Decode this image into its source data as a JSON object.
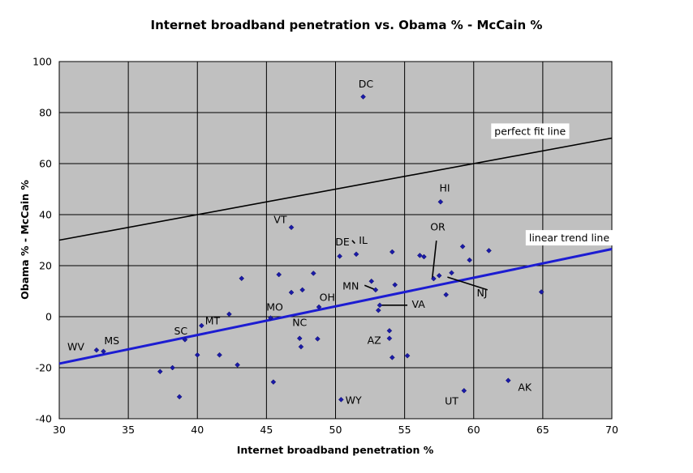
{
  "chart_data": {
    "type": "scatter",
    "title": "Internet broadband penetration vs. Obama % - McCain %",
    "xlabel": "Internet broadband penetration %",
    "ylabel": "Obama % - McCain %",
    "xlim": [
      30,
      70
    ],
    "ylim": [
      -40,
      100
    ],
    "xticks": [
      30,
      35,
      40,
      45,
      50,
      55,
      60,
      65,
      70
    ],
    "yticks": [
      -40,
      -20,
      0,
      20,
      40,
      60,
      80,
      100
    ],
    "grid": true,
    "colors": {
      "plot_bg": "#c0c0c0",
      "point": "#1a1aa8",
      "trend": "#1c1cd2",
      "fit": "#000000"
    },
    "points": [
      {
        "x": 32.7,
        "y": -13.1
      },
      {
        "x": 33.2,
        "y": -13.6
      },
      {
        "x": 37.3,
        "y": -21.5
      },
      {
        "x": 38.2,
        "y": -20.0
      },
      {
        "x": 38.7,
        "y": -31.4
      },
      {
        "x": 39.1,
        "y": -9.0
      },
      {
        "x": 40.0,
        "y": -15.0
      },
      {
        "x": 40.3,
        "y": -3.5
      },
      {
        "x": 41.6,
        "y": -15.0
      },
      {
        "x": 42.3,
        "y": 1.0
      },
      {
        "x": 42.9,
        "y": -18.9
      },
      {
        "x": 43.2,
        "y": 15.0
      },
      {
        "x": 45.3,
        "y": -0.5
      },
      {
        "x": 45.5,
        "y": -25.6
      },
      {
        "x": 45.9,
        "y": 16.5
      },
      {
        "x": 46.8,
        "y": 9.5
      },
      {
        "x": 46.8,
        "y": 35.0
      },
      {
        "x": 47.4,
        "y": -8.5
      },
      {
        "x": 47.5,
        "y": -11.8
      },
      {
        "x": 47.6,
        "y": 10.5
      },
      {
        "x": 48.4,
        "y": 17.0
      },
      {
        "x": 48.7,
        "y": -8.7
      },
      {
        "x": 48.8,
        "y": 3.8
      },
      {
        "x": 50.3,
        "y": 23.7
      },
      {
        "x": 50.4,
        "y": -32.5
      },
      {
        "x": 51.5,
        "y": 24.5
      },
      {
        "x": 52.0,
        "y": 86.2
      },
      {
        "x": 52.6,
        "y": 13.9
      },
      {
        "x": 52.9,
        "y": 10.5
      },
      {
        "x": 53.1,
        "y": 2.5
      },
      {
        "x": 53.2,
        "y": 4.5
      },
      {
        "x": 53.9,
        "y": -5.5
      },
      {
        "x": 53.9,
        "y": -8.5
      },
      {
        "x": 54.1,
        "y": 25.4
      },
      {
        "x": 54.1,
        "y": -16.0
      },
      {
        "x": 54.3,
        "y": 12.5
      },
      {
        "x": 55.2,
        "y": -15.3
      },
      {
        "x": 56.1,
        "y": 24.0
      },
      {
        "x": 56.4,
        "y": 23.5
      },
      {
        "x": 57.1,
        "y": 14.9
      },
      {
        "x": 57.5,
        "y": 16.1
      },
      {
        "x": 57.6,
        "y": 45.0
      },
      {
        "x": 58.0,
        "y": 8.6
      },
      {
        "x": 58.4,
        "y": 17.2
      },
      {
        "x": 59.2,
        "y": 27.5
      },
      {
        "x": 59.3,
        "y": -29.0
      },
      {
        "x": 59.7,
        "y": 22.2
      },
      {
        "x": 61.1,
        "y": 25.9
      },
      {
        "x": 62.5,
        "y": -25.0
      },
      {
        "x": 64.9,
        "y": 9.7
      }
    ],
    "state_labels": [
      {
        "text": "WV",
        "x": 31.2,
        "y": -13.1
      },
      {
        "text": "MS",
        "x": 33.8,
        "y": -10.8
      },
      {
        "text": "SC",
        "x": 38.8,
        "y": -7.0
      },
      {
        "text": "MT",
        "x": 41.1,
        "y": -3.0
      },
      {
        "text": "MO",
        "x": 45.6,
        "y": 2.4
      },
      {
        "text": "NC",
        "x": 47.4,
        "y": -3.6
      },
      {
        "text": "OH",
        "x": 49.4,
        "y": 6.2
      },
      {
        "text": "DE",
        "x": 50.5,
        "y": 28.0
      },
      {
        "text": "IL",
        "x": 52.0,
        "y": 28.6
      },
      {
        "text": "DC",
        "x": 52.2,
        "y": 89.8
      },
      {
        "text": "VT",
        "x": 46.0,
        "y": 36.6
      },
      {
        "text": "HI",
        "x": 57.9,
        "y": 49.1
      },
      {
        "text": "OR",
        "x": 57.4,
        "y": 33.8
      },
      {
        "text": "MN",
        "x": 51.1,
        "y": 10.7
      },
      {
        "text": "VA",
        "x": 56.0,
        "y": 3.5
      },
      {
        "text": "NJ",
        "x": 60.6,
        "y": 7.9
      },
      {
        "text": "AZ",
        "x": 52.8,
        "y": -10.6
      },
      {
        "text": "WY",
        "x": 51.3,
        "y": -34.2
      },
      {
        "text": "UT",
        "x": 58.4,
        "y": -34.4
      },
      {
        "text": "AK",
        "x": 63.7,
        "y": -29.0
      }
    ],
    "leader_lines": [
      [
        [
          57.3,
          29.8
        ],
        [
          57.0,
          14.9
        ]
      ],
      [
        [
          58.1,
          15.5
        ],
        [
          61.0,
          10.5
        ]
      ],
      [
        [
          52.1,
          12.3
        ],
        [
          52.9,
          10.5
        ]
      ],
      [
        [
          53.2,
          4.5
        ],
        [
          55.2,
          4.5
        ]
      ],
      [
        [
          51.2,
          29.9
        ],
        [
          51.4,
          28.7
        ]
      ]
    ],
    "series": [
      {
        "name": "perfect fit line",
        "kind": "line",
        "points": [
          [
            30,
            30
          ],
          [
            70,
            70
          ]
        ],
        "label_pos": [
          61.5,
          71.3
        ]
      },
      {
        "name": "linear trend line",
        "kind": "line",
        "points": [
          [
            30,
            -18.4
          ],
          [
            70,
            26.5
          ]
        ],
        "label_pos": [
          64.0,
          29.5
        ]
      }
    ]
  }
}
